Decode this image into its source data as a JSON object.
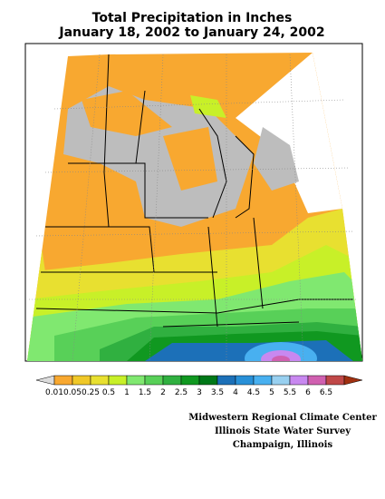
{
  "title": "Total Precipitation in Inches",
  "subtitle": "January 18, 2002 to January 24, 2002",
  "legend": {
    "ticks": [
      0.01,
      0.05,
      0.25,
      0.5,
      1,
      1.5,
      2,
      2.5,
      3,
      3.5,
      4,
      4.5,
      5,
      5.5,
      6,
      6.5
    ],
    "colors": [
      "#dcdcdc",
      "#f8a830",
      "#f0c828",
      "#e8e030",
      "#c8f028",
      "#80e870",
      "#58d058",
      "#30b040",
      "#109820",
      "#007818",
      "#1c70b8",
      "#2890d8",
      "#48b0f0",
      "#98d0f0",
      "#c888f0",
      "#d060b0",
      "#c04848",
      "#a03010"
    ]
  },
  "credits": [
    "Midwestern Regional Climate Center",
    "Illinois State Water Survey",
    "Champaign, Illinois"
  ]
}
